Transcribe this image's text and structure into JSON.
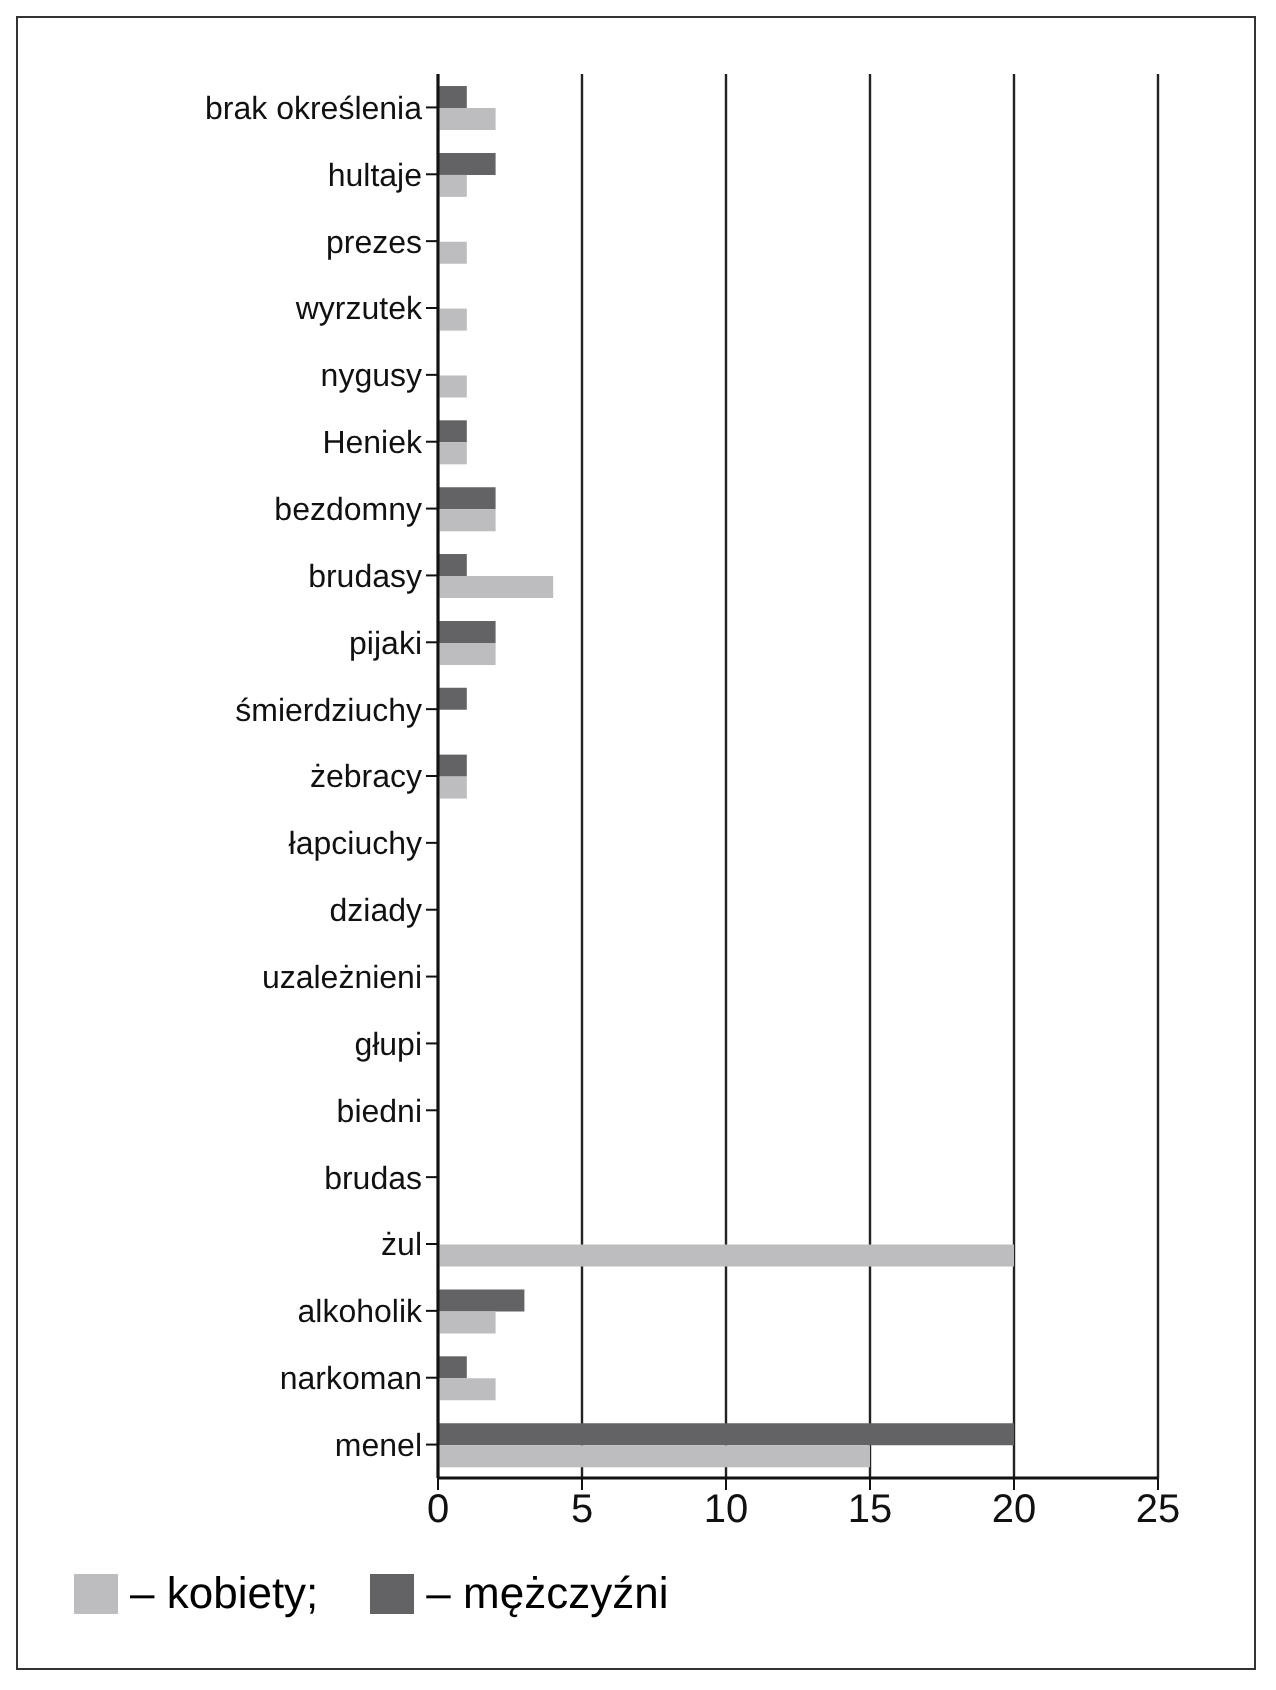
{
  "chart_data": {
    "type": "bar",
    "orientation": "horizontal",
    "categories": [
      "brak określenia",
      "hultaje",
      "prezes",
      "wyrzutek",
      "nygusy",
      "Heniek",
      "bezdomny",
      "brudasy",
      "pijaki",
      "śmierdziuchy",
      "żebracy",
      "łapciuchy",
      "dziady",
      "uzależnieni",
      "głupi",
      "biedni",
      "brudas",
      "żul",
      "alkoholik",
      "narkoman",
      "menel"
    ],
    "series": [
      {
        "name": "– kobiety;",
        "color": "#bdbdbf",
        "values": [
          2,
          1,
          1,
          1,
          1,
          1,
          2,
          4,
          2,
          0,
          1,
          0,
          0,
          0,
          0,
          0,
          0,
          20,
          2,
          2,
          15
        ]
      },
      {
        "name": "– mężczyźni",
        "color": "#636366",
        "values": [
          1,
          2,
          0,
          0,
          0,
          1,
          2,
          1,
          2,
          1,
          1,
          0,
          0,
          0,
          0,
          0,
          0,
          0,
          3,
          1,
          20
        ]
      }
    ],
    "xlim": [
      0,
      25
    ],
    "xticks": [
      0,
      5,
      10,
      15,
      20,
      25
    ],
    "grid": "x",
    "legend": "bottom"
  }
}
